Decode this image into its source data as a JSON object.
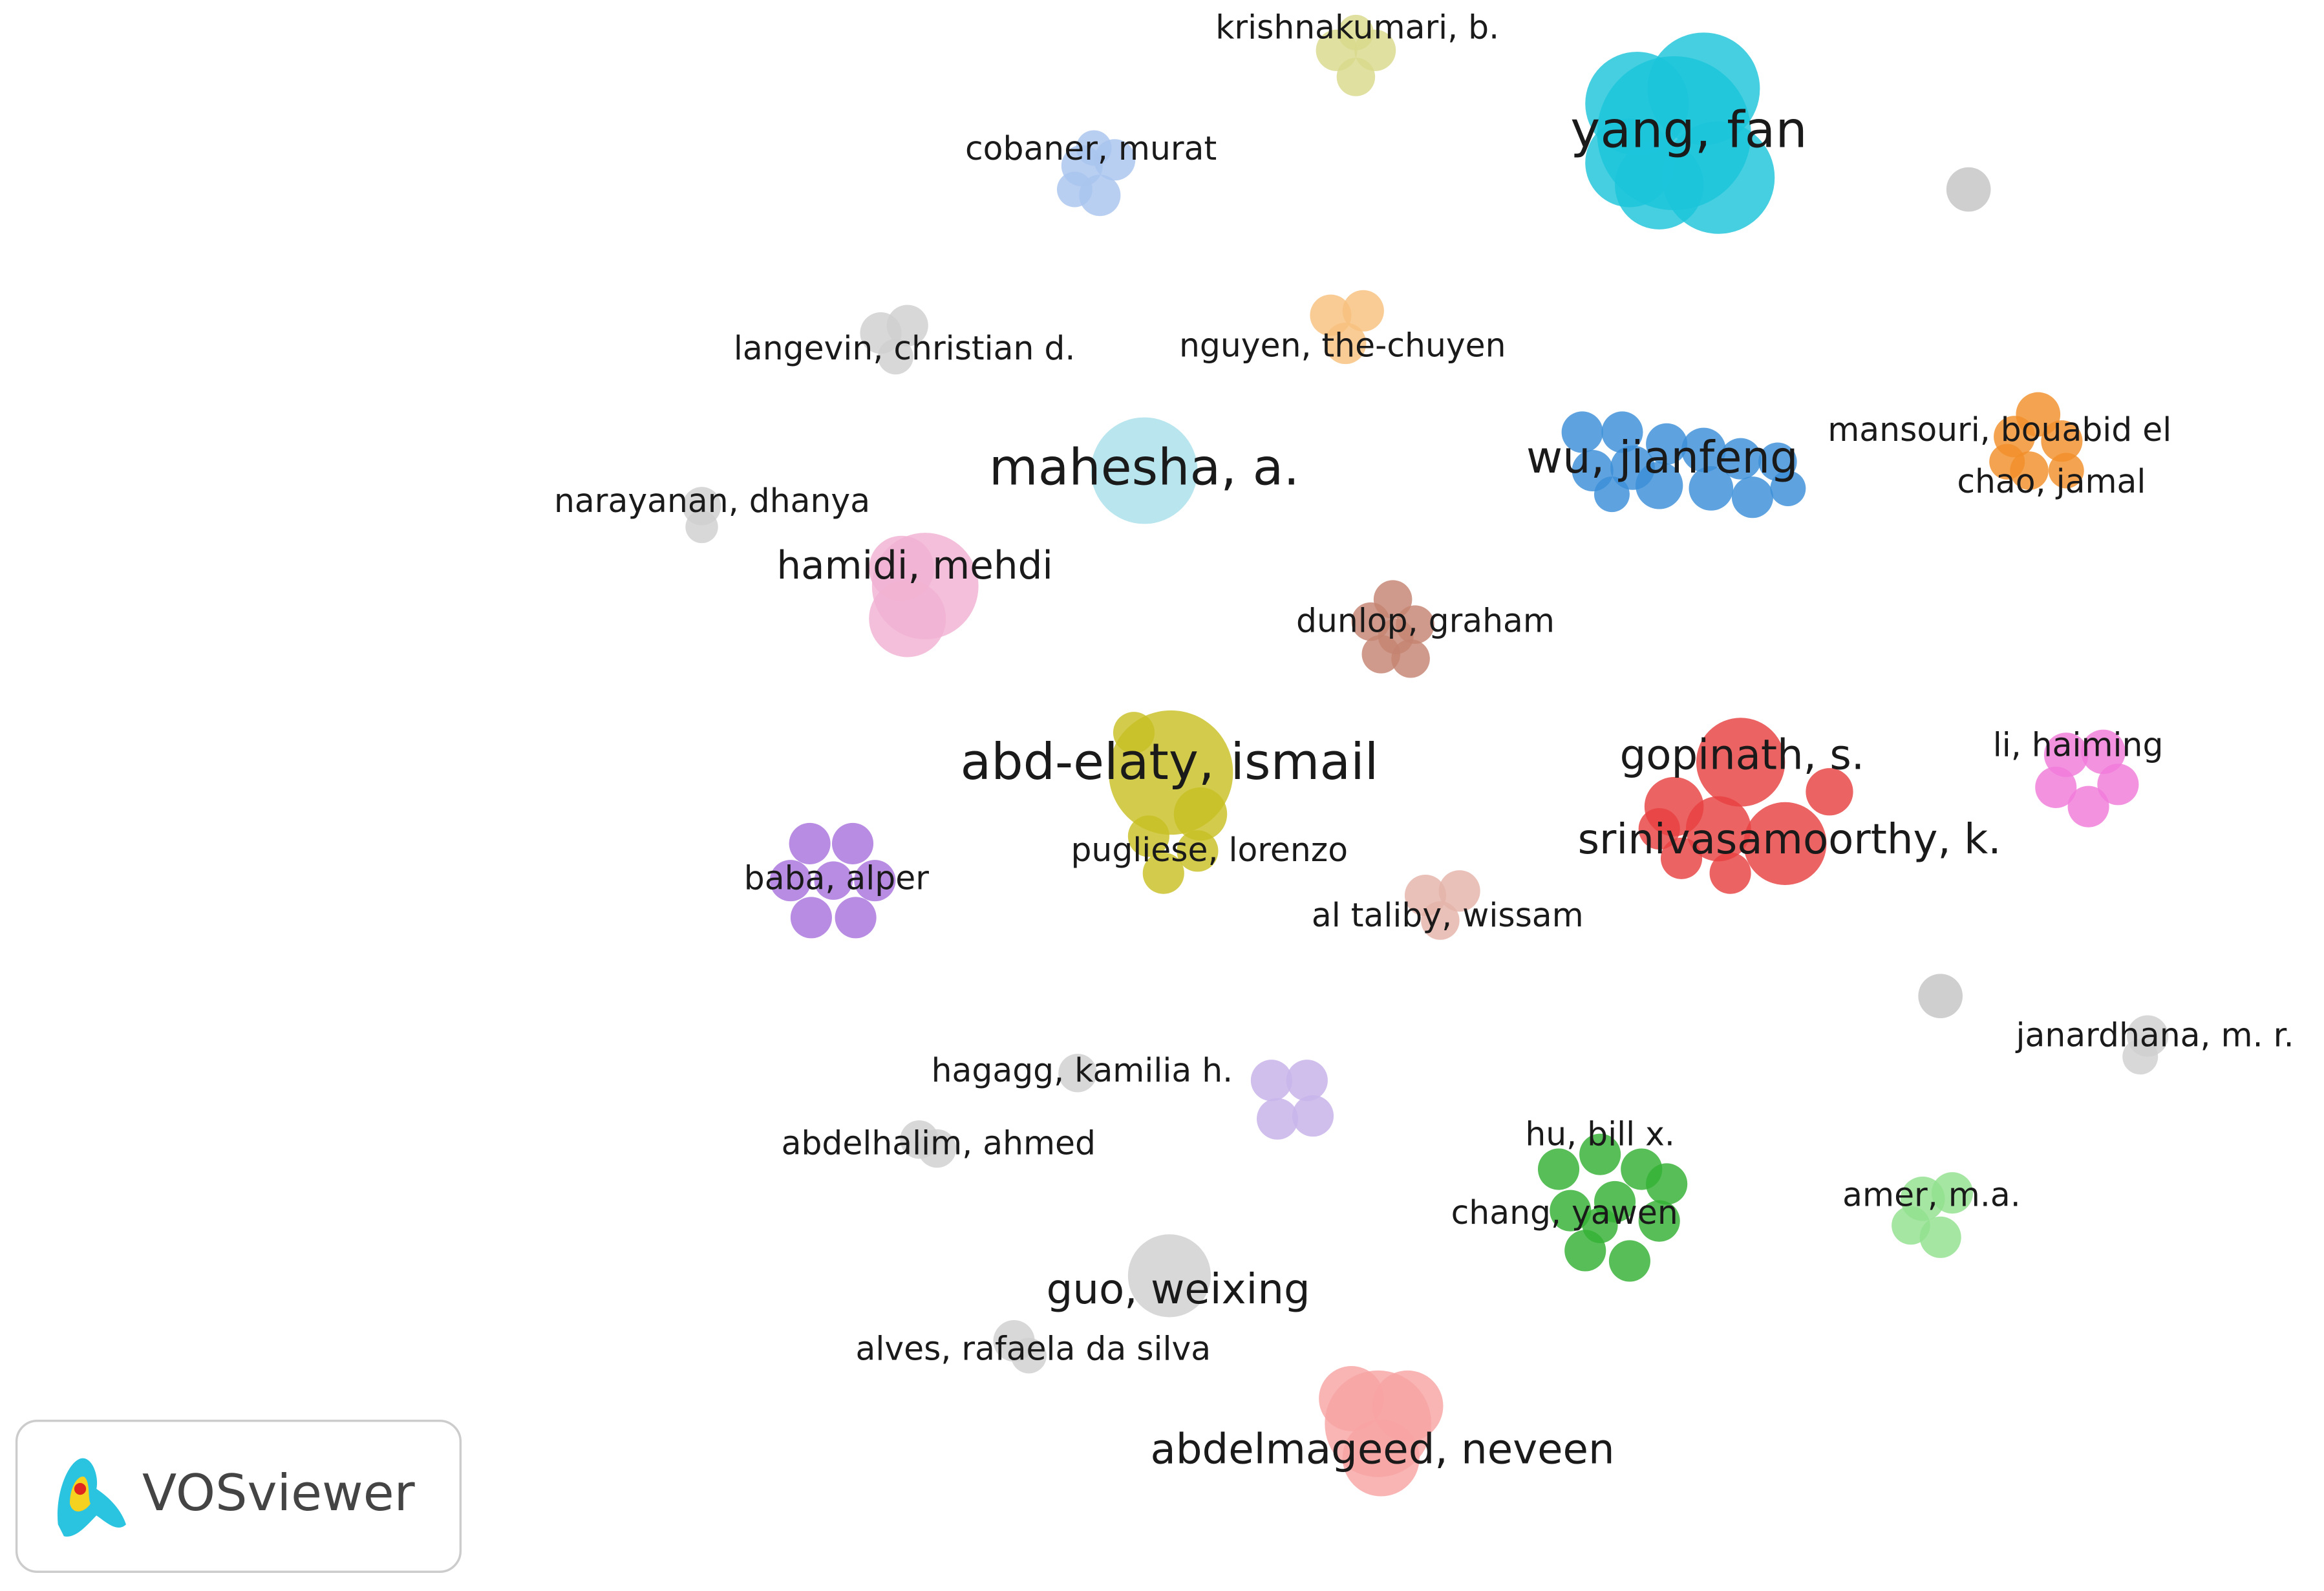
{
  "nodes": [
    {
      "label": "krishnakumari, b."
    },
    {
      "label": "yang, fan"
    },
    {
      "label": "cobaner, murat"
    },
    {
      "label": "langevin, christian d."
    },
    {
      "label": "nguyen, the-chuyen"
    },
    {
      "label": "mansouri, bouabid el"
    },
    {
      "label": "chao, jamal"
    },
    {
      "label": "wu, jianfeng"
    },
    {
      "label": "mahesha, a."
    },
    {
      "label": "narayanan, dhanya"
    },
    {
      "label": "hamidi, mehdi"
    },
    {
      "label": "dunlop, graham"
    },
    {
      "label": "abd-elaty, ismail"
    },
    {
      "label": "gopinath, s."
    },
    {
      "label": "srinivasamoorthy, k."
    },
    {
      "label": "li, haiming"
    },
    {
      "label": "baba, alper"
    },
    {
      "label": "pugliese, lorenzo"
    },
    {
      "label": "al taliby, wissam"
    },
    {
      "label": "hagagg, kamilia h."
    },
    {
      "label": "janardhana, m. r."
    },
    {
      "label": "abdelhalim, ahmed"
    },
    {
      "label": "hu, bill x."
    },
    {
      "label": "chang, yawen"
    },
    {
      "label": "amer, m.a."
    },
    {
      "label": "guo, weixing"
    },
    {
      "label": "alves, rafaela da silva"
    },
    {
      "label": "abdelmageed, neveen"
    }
  ],
  "logo": {
    "text": "VOSviewer"
  }
}
